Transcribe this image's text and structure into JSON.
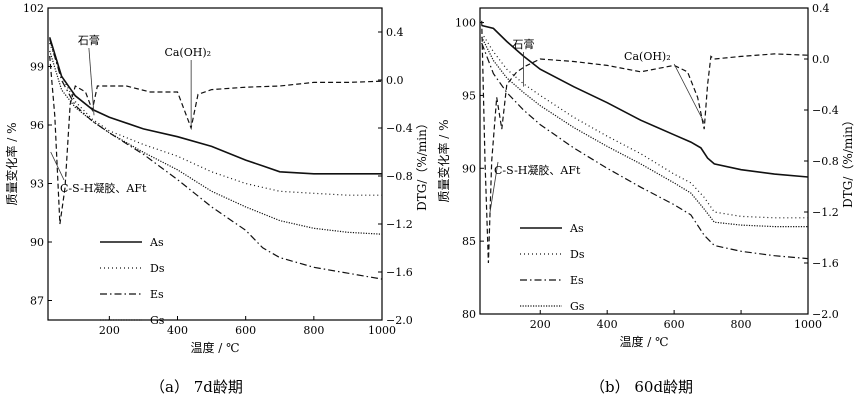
{
  "chart_data": [
    {
      "type": "line",
      "panel": "a",
      "caption": "（a） 7d龄期",
      "xlabel": "温度 / ℃",
      "ylabel_left": "质量变化率 / %",
      "ylabel_right": "DTG/（%/min）",
      "xlim": [
        20,
        1000
      ],
      "ylim_left": [
        86,
        102
      ],
      "ylim_right": [
        -2.0,
        0.6
      ],
      "xticks": [
        "200",
        "400",
        "600",
        "800",
        "1000"
      ],
      "yticks_left": [
        "87",
        "90",
        "93",
        "96",
        "99",
        "102"
      ],
      "yticks_right": [
        "−2.0",
        "−1.6",
        "−1.2",
        "−0.8",
        "−0.4",
        "0.0",
        "0.4"
      ],
      "annotations": [
        "石膏",
        "Ca(OH)₂",
        "C-S-H凝胶、AFt"
      ],
      "legend": [
        "As",
        "Ds",
        "Es",
        "Gs"
      ],
      "series": [
        {
          "name": "As",
          "style": "solid",
          "axis": "left",
          "x": [
            25,
            60,
            100,
            150,
            200,
            300,
            400,
            500,
            600,
            650,
            700,
            800,
            900,
            1000
          ],
          "y": [
            100.5,
            98.5,
            97.5,
            96.8,
            96.4,
            95.8,
            95.4,
            94.9,
            94.2,
            93.9,
            93.6,
            93.5,
            93.5,
            93.5
          ]
        },
        {
          "name": "Ds",
          "style": "dotted",
          "axis": "left",
          "x": [
            25,
            60,
            100,
            150,
            200,
            300,
            400,
            500,
            600,
            700,
            800,
            900,
            1000
          ],
          "y": [
            100.2,
            98.5,
            97.2,
            96.3,
            95.7,
            95.0,
            94.4,
            93.6,
            93.0,
            92.6,
            92.5,
            92.4,
            92.4
          ]
        },
        {
          "name": "Es",
          "style": "dashdot",
          "axis": "left",
          "x": [
            25,
            60,
            100,
            150,
            200,
            300,
            400,
            500,
            600,
            650,
            700,
            800,
            900,
            1000
          ],
          "y": [
            100.4,
            98.3,
            97.0,
            96.2,
            95.6,
            94.5,
            93.2,
            91.8,
            90.6,
            89.7,
            89.2,
            88.7,
            88.4,
            88.1
          ]
        },
        {
          "name": "Gs",
          "style": "densedot",
          "axis": "left",
          "x": [
            25,
            60,
            100,
            150,
            200,
            300,
            400,
            500,
            600,
            700,
            800,
            900,
            1000
          ],
          "y": [
            99.8,
            97.8,
            96.9,
            96.2,
            95.6,
            94.6,
            93.7,
            92.6,
            91.8,
            91.1,
            90.7,
            90.5,
            90.4
          ]
        },
        {
          "name": "DTG",
          "style": "dashed",
          "axis": "right",
          "x": [
            25,
            40,
            55,
            70,
            85,
            100,
            130,
            150,
            165,
            190,
            250,
            320,
            400,
            420,
            440,
            460,
            500,
            600,
            700,
            800,
            900,
            1000
          ],
          "y": [
            0.2,
            -0.3,
            -1.2,
            -0.9,
            -0.2,
            -0.05,
            -0.1,
            -0.25,
            -0.05,
            -0.05,
            -0.05,
            -0.1,
            -0.1,
            -0.25,
            -0.4,
            -0.12,
            -0.08,
            -0.06,
            -0.05,
            -0.02,
            -0.02,
            -0.01
          ]
        }
      ]
    },
    {
      "type": "line",
      "panel": "b",
      "caption": "（b） 60d龄期",
      "xlabel": "温度 / ℃",
      "ylabel_left": "质量变化率 / %",
      "ylabel_right": "DTG/（%/min）",
      "xlim": [
        20,
        1000
      ],
      "ylim_left": [
        80,
        101
      ],
      "ylim_right": [
        -2.0,
        0.4
      ],
      "xticks": [
        "200",
        "400",
        "600",
        "800",
        "1000"
      ],
      "yticks_left": [
        "80",
        "85",
        "90",
        "95",
        "100"
      ],
      "yticks_right": [
        "−2.0",
        "−1.6",
        "−1.2",
        "−0.8",
        "−0.4",
        "0.0",
        "0.4"
      ],
      "annotations": [
        "石膏",
        "Ca(OH)₂",
        "C-S-H凝胶、AFt"
      ],
      "legend": [
        "As",
        "Ds",
        "Es",
        "Gs"
      ],
      "series": [
        {
          "name": "As",
          "style": "solid",
          "axis": "left",
          "x": [
            25,
            60,
            100,
            150,
            200,
            300,
            400,
            500,
            600,
            650,
            680,
            700,
            720,
            800,
            900,
            1000
          ],
          "y": [
            99.8,
            99.6,
            98.7,
            97.7,
            96.8,
            95.6,
            94.5,
            93.3,
            92.3,
            91.8,
            91.4,
            90.7,
            90.3,
            89.9,
            89.6,
            89.4
          ]
        },
        {
          "name": "Ds",
          "style": "dotted",
          "axis": "left",
          "x": [
            25,
            60,
            100,
            150,
            200,
            300,
            400,
            500,
            600,
            650,
            690,
            720,
            800,
            900,
            1000
          ],
          "y": [
            99.3,
            98.0,
            96.8,
            95.8,
            95.0,
            93.5,
            92.2,
            91.0,
            89.6,
            89.0,
            88.0,
            87.0,
            86.7,
            86.6,
            86.6
          ]
        },
        {
          "name": "Es",
          "style": "dashdot",
          "axis": "left",
          "x": [
            25,
            60,
            100,
            150,
            200,
            300,
            400,
            500,
            600,
            650,
            690,
            720,
            800,
            900,
            1000
          ],
          "y": [
            98.6,
            96.5,
            95.2,
            94.0,
            93.0,
            91.4,
            90.0,
            88.7,
            87.5,
            86.8,
            85.4,
            84.7,
            84.3,
            84.0,
            83.8
          ]
        },
        {
          "name": "Gs",
          "style": "densedot",
          "axis": "left",
          "x": [
            25,
            60,
            100,
            150,
            200,
            300,
            400,
            500,
            600,
            650,
            690,
            720,
            800,
            900,
            1000
          ],
          "y": [
            99.0,
            97.4,
            96.2,
            95.2,
            94.3,
            92.8,
            91.5,
            90.3,
            89.0,
            88.3,
            87.2,
            86.3,
            86.1,
            86.0,
            86.0
          ]
        },
        {
          "name": "DTG",
          "style": "dashed",
          "axis": "right",
          "x": [
            25,
            35,
            45,
            55,
            70,
            85,
            100,
            130,
            160,
            200,
            300,
            400,
            500,
            600,
            640,
            670,
            690,
            700,
            710,
            720,
            800,
            900,
            1000
          ],
          "y": [
            0.3,
            -0.8,
            -1.6,
            -0.8,
            -0.3,
            -0.55,
            -0.2,
            -0.1,
            -0.05,
            0.0,
            -0.02,
            -0.05,
            -0.1,
            -0.05,
            -0.1,
            -0.3,
            -0.55,
            -0.2,
            0.02,
            0.0,
            0.02,
            0.04,
            0.03
          ]
        }
      ]
    }
  ]
}
